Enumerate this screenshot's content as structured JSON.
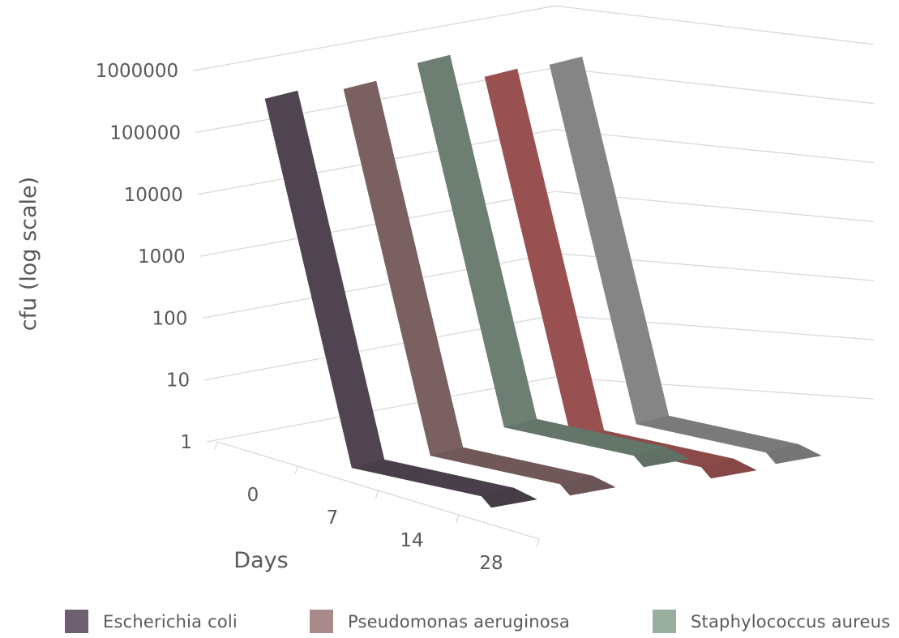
{
  "chart_data": {
    "type": "line",
    "variant": "3d-line",
    "title": "",
    "xlabel": "Days",
    "ylabel": "cfu (log scale)",
    "y_scale": "log",
    "ylim": [
      1,
      1000000
    ],
    "y_ticks": [
      1,
      10,
      100,
      1000,
      10000,
      100000,
      1000000
    ],
    "y_tick_labels": [
      "1",
      "10",
      "100",
      "1000",
      "10000",
      "100000",
      "1000000"
    ],
    "x": [
      "0",
      "7",
      "14",
      "28"
    ],
    "series": [
      {
        "name": "Escherichia coli",
        "color": "#4f4450",
        "legend_color": "#6e5f70",
        "values": [
          1000000,
          1,
          1,
          1
        ]
      },
      {
        "name": "Pseudomonas aeruginosa",
        "color": "#7a6061",
        "legend_color": "#a88a8a",
        "values": [
          1000000,
          1,
          1,
          1
        ]
      },
      {
        "name": "Staphylococcus aureus",
        "color": "#6d7f72",
        "legend_color": "#9aae9f",
        "values": [
          1000000,
          1,
          1,
          1
        ]
      },
      {
        "name": "",
        "color": "#985150",
        "values": [
          1000000,
          1,
          1,
          1
        ]
      },
      {
        "name": "",
        "color": "#858585",
        "values": [
          1000000,
          1,
          1,
          1
        ]
      }
    ],
    "grid": true,
    "legend_position": "bottom"
  }
}
